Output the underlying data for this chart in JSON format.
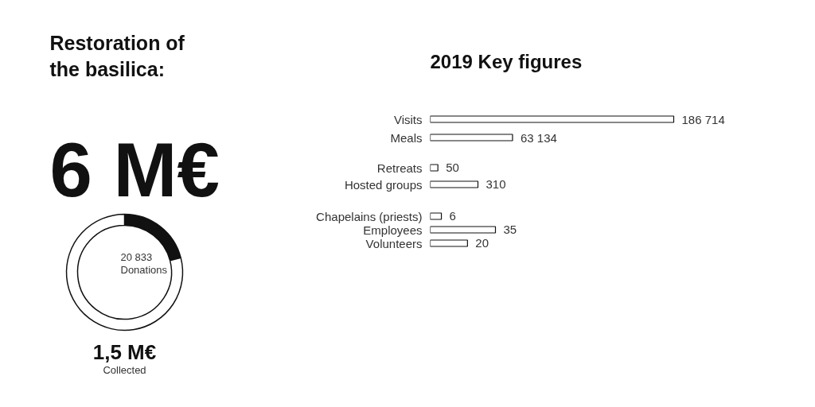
{
  "chart_data": [
    {
      "type": "donut",
      "title": "Restoration of the basilica:",
      "categories": [
        null,
        null
      ],
      "values": [
        21,
        79
      ],
      "colors": [
        "#111111",
        "#ffffff"
      ],
      "annotations": [
        "6 M€",
        "20 833",
        "Donations",
        "1,5 M€",
        "Collected"
      ]
    },
    {
      "type": "bar",
      "orientation": "horizontal",
      "title": "2019 Key figures",
      "categories": [
        "Visits",
        "Meals"
      ],
      "values": [
        186714,
        63134
      ],
      "value_labels": [
        "186 714",
        "63 134"
      ],
      "color": "#ffffff",
      "tick_labels": "y"
    },
    {
      "type": "bar",
      "orientation": "horizontal",
      "categories": [
        "Retreats",
        "Hosted groups"
      ],
      "values": [
        50,
        310
      ],
      "value_labels": [
        "50",
        "310"
      ],
      "color": "#ffffff",
      "tick_labels": "y"
    },
    {
      "type": "bar",
      "orientation": "horizontal",
      "categories": [
        "Chapelains (priests)",
        "Employees",
        "Volunteers"
      ],
      "values": [
        6,
        35,
        20
      ],
      "value_labels": [
        "6",
        "35",
        "20"
      ],
      "color": "#ffffff",
      "tick_labels": "y"
    }
  ]
}
